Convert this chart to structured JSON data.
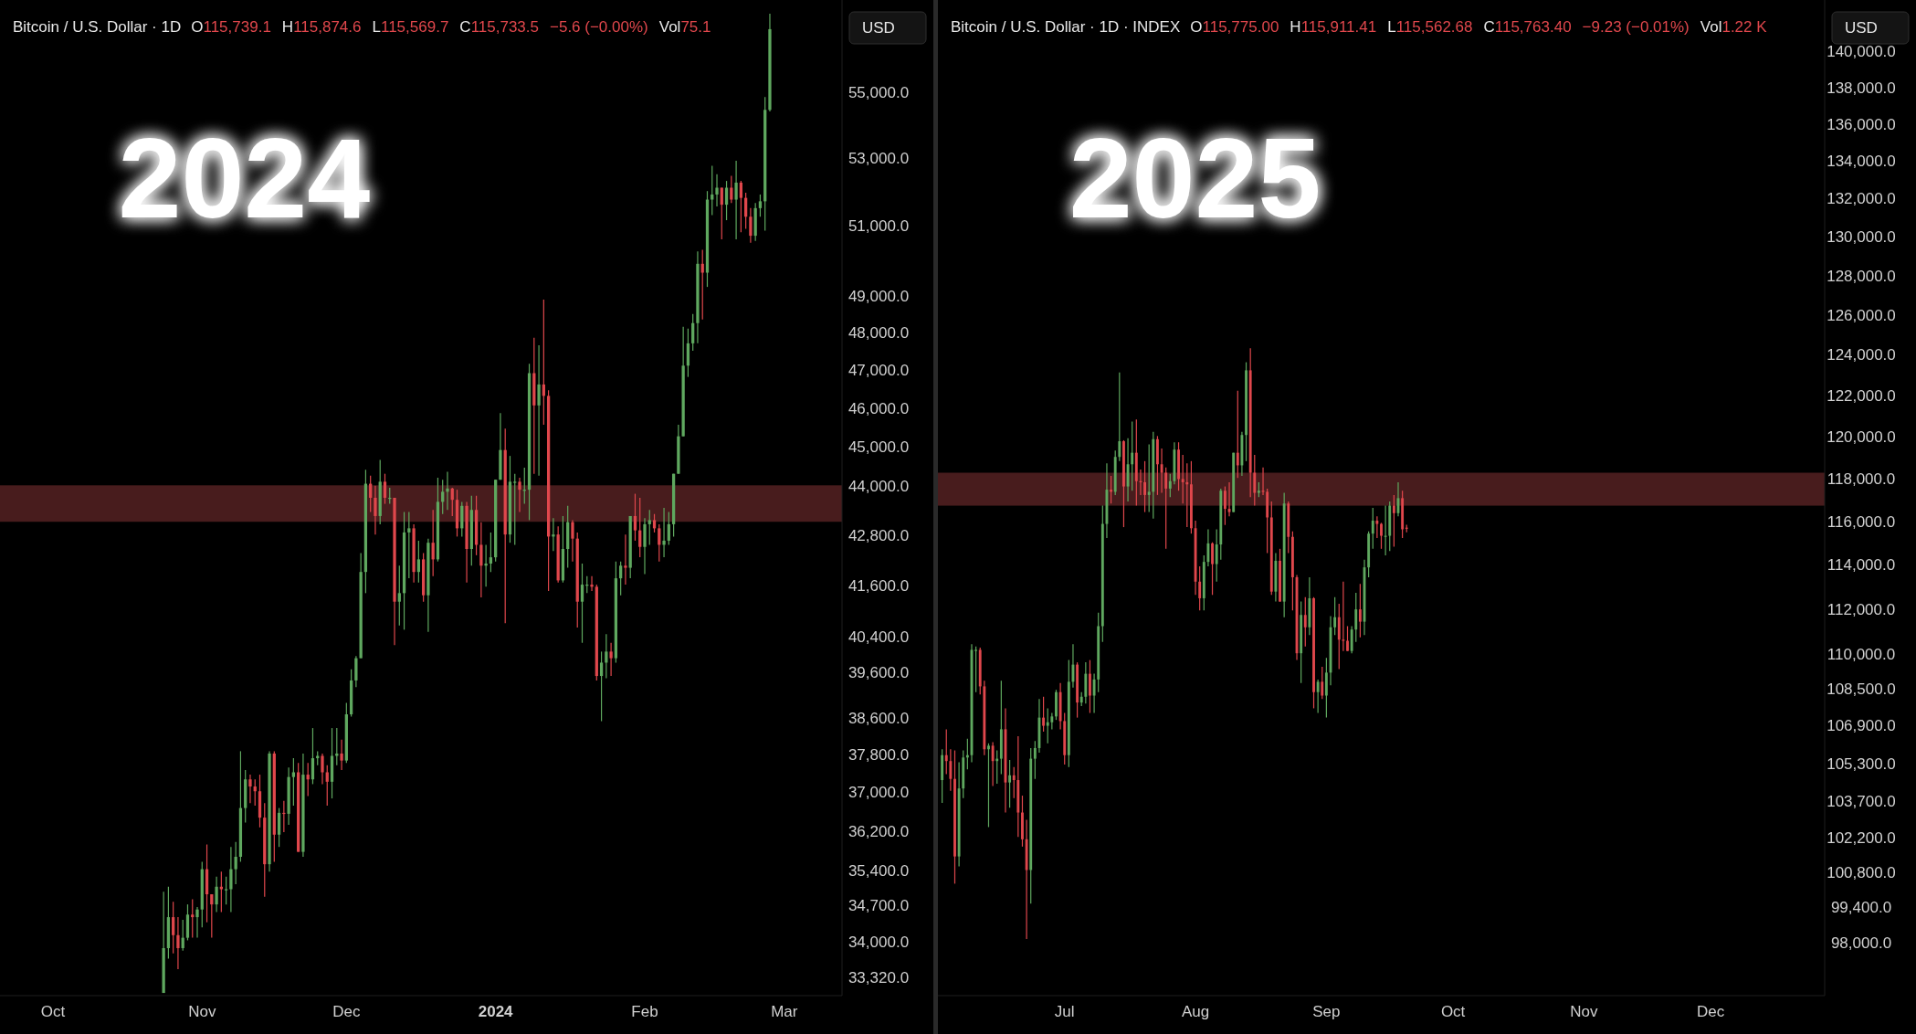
{
  "chart_data": [
    {
      "type": "candlestick",
      "title": "2024",
      "subtitle": "Bitcoin / U.S. Dollar · 1D",
      "ylabel": "USD",
      "log": true,
      "annotations": [
        "O115,739.1",
        "H115,874.6",
        "L115,569.7",
        "C115,733.5",
        "−5.6 (−0.00%)",
        "Vol75.1"
      ],
      "colors": [
        "#5fa85f",
        "#5fa85f",
        "#e0474c",
        "#e0474c",
        "#5fa85f",
        "#5fa85f",
        "#e0474c",
        "#5fa85f",
        "#5fa85f",
        "#e0474c",
        "#e0474c",
        "#5fa85f",
        "#e0474c",
        "#5fa85f",
        "#5fa85f",
        "#5fa85f",
        "#5fa85f",
        "#5fa85f",
        "#e0474c",
        "#e0474c",
        "#e0474c",
        "#e0474c",
        "#5fa85f",
        "#e0474c",
        "#5fa85f",
        "#e0474c",
        "#5fa85f",
        "#5fa85f",
        "#e0474c",
        "#5fa85f",
        "#e0474c",
        "#5fa85f",
        "#5fa85f",
        "#e0474c",
        "#e0474c",
        "#5fa85f",
        "#5fa85f",
        "#e0474c",
        "#5fa85f",
        "#5fa85f",
        "#5fa85f",
        "#5fa85f",
        "#5fa85f",
        "#e0474c",
        "#e0474c",
        "#5fa85f",
        "#e0474c",
        "#5fa85f",
        "#e0474c",
        "#5fa85f",
        "#5fa85f",
        "#5fa85f",
        "#e0474c",
        "#5fa85f",
        "#e0474c",
        "#5fa85f",
        "#e0474c",
        "#5fa85f",
        "#5fa85f",
        "#5fa85f",
        "#e0474c",
        "#e0474c",
        "#5fa85f",
        "#e0474c",
        "#5fa85f",
        "#e0474c",
        "#e0474c",
        "#5fa85f",
        "#5fa85f",
        "#5fa85f",
        "#5fa85f",
        "#e0474c",
        "#5fa85f",
        "#5fa85f",
        "#e0474c",
        "#5fa85f",
        "#5fa85f",
        "#e0474c",
        "#5fa85f",
        "#e0474c",
        "#e0474c",
        "#5fa85f",
        "#e0474c",
        "#5fa85f",
        "#5fa85f",
        "#e0474c",
        "#e0474c",
        "#5fa85f",
        "#5fa85f",
        "#e0474c",
        "#e0474c",
        "#5fa85f",
        "#5fa85f",
        "#e0474c",
        "#5fa85f",
        "#5fa85f",
        "#e0474c",
        "#5fa85f",
        "#e0474c",
        "#e0474c",
        "#5fa85f",
        "#5fa85f",
        "#e0474c",
        "#e0474c",
        "#5fa85f",
        "#5fa85f",
        "#5fa85f",
        "#5fa85f",
        "#5fa85f",
        "#5fa85f",
        "#5fa85f",
        "#5fa85f",
        "#e0474c",
        "#5fa85f",
        "#5fa85f",
        "#5fa85f",
        "#e0474c",
        "#5fa85f",
        "#e0474c",
        "#5fa85f",
        "#e0474c",
        "#e0474c",
        "#e0474c",
        "#5fa85f",
        "#5fa85f",
        "#5fa85f",
        "#5fa85f"
      ],
      "xlim": [
        "2023-09-20",
        "2024-03-13"
      ],
      "xticks": [
        {
          "value": "2023-10-01",
          "label": "Oct"
        },
        {
          "value": "2023-11-01",
          "label": "Nov"
        },
        {
          "value": "2023-12-01",
          "label": "Dec"
        },
        {
          "value": "2024-01-01",
          "label": "2024"
        },
        {
          "value": "2024-02-01",
          "label": "Feb"
        },
        {
          "value": "2024-03-01",
          "label": "Mar"
        }
      ],
      "ylim": [
        33000,
        58000
      ],
      "yticks": [
        {
          "value": 55000,
          "label": "55,000.0"
        },
        {
          "value": 53000,
          "label": "53,000.0"
        },
        {
          "value": 51000,
          "label": "51,000.0"
        },
        {
          "value": 49000,
          "label": "49,000.0"
        },
        {
          "value": 48000,
          "label": "48,000.0"
        },
        {
          "value": 47000,
          "label": "47,000.0"
        },
        {
          "value": 46000,
          "label": "46,000.0"
        },
        {
          "value": 45000,
          "label": "45,000.0"
        },
        {
          "value": 44000,
          "label": "44,000.0"
        },
        {
          "value": 42800,
          "label": "42,800.0"
        },
        {
          "value": 41600,
          "label": "41,600.0"
        },
        {
          "value": 40400,
          "label": "40,400.0"
        },
        {
          "value": 39600,
          "label": "39,600.0"
        },
        {
          "value": 38600,
          "label": "38,600.0"
        },
        {
          "value": 37800,
          "label": "37,800.0"
        },
        {
          "value": 37000,
          "label": "37,000.0"
        },
        {
          "value": 36200,
          "label": "36,200.0"
        },
        {
          "value": 35400,
          "label": "35,400.0"
        },
        {
          "value": 34700,
          "label": "34,700.0"
        },
        {
          "value": 34000,
          "label": "34,000.0"
        },
        {
          "value": 33320,
          "label": "33,320.0"
        }
      ],
      "bands": [
        {
          "axis": "y",
          "from": 43160,
          "to": 44060,
          "color": "#4c1d1f"
        }
      ],
      "x": [
        "2023-10-24",
        "2023-10-25",
        "2023-10-26",
        "2023-10-27",
        "2023-10-28",
        "2023-10-29",
        "2023-10-30",
        "2023-10-31",
        "2023-11-01",
        "2023-11-02",
        "2023-11-03",
        "2023-11-04",
        "2023-11-05",
        "2023-11-06",
        "2023-11-07",
        "2023-11-08",
        "2023-11-09",
        "2023-11-10",
        "2023-11-11",
        "2023-11-12",
        "2023-11-13",
        "2023-11-14",
        "2023-11-15",
        "2023-11-16",
        "2023-11-17",
        "2023-11-18",
        "2023-11-19",
        "2023-11-20",
        "2023-11-21",
        "2023-11-22",
        "2023-11-23",
        "2023-11-24",
        "2023-11-25",
        "2023-11-26",
        "2023-11-27",
        "2023-11-28",
        "2023-11-29",
        "2023-11-30",
        "2023-12-01",
        "2023-12-02",
        "2023-12-03",
        "2023-12-04",
        "2023-12-05",
        "2023-12-06",
        "2023-12-07",
        "2023-12-08",
        "2023-12-09",
        "2023-12-10",
        "2023-12-11",
        "2023-12-12",
        "2023-12-13",
        "2023-12-14",
        "2023-12-15",
        "2023-12-16",
        "2023-12-17",
        "2023-12-18",
        "2023-12-19",
        "2023-12-20",
        "2023-12-21",
        "2023-12-22",
        "2023-12-23",
        "2023-12-24",
        "2023-12-25",
        "2023-12-26",
        "2023-12-27",
        "2023-12-28",
        "2023-12-29",
        "2023-12-30",
        "2023-12-31",
        "2024-01-01",
        "2024-01-02",
        "2024-01-03",
        "2024-01-04",
        "2024-01-05",
        "2024-01-06",
        "2024-01-07",
        "2024-01-08",
        "2024-01-09",
        "2024-01-10",
        "2024-01-11",
        "2024-01-12",
        "2024-01-13",
        "2024-01-14",
        "2024-01-15",
        "2024-01-16",
        "2024-01-17",
        "2024-01-18",
        "2024-01-19",
        "2024-01-20",
        "2024-01-21",
        "2024-01-22",
        "2024-01-23",
        "2024-01-24",
        "2024-01-25",
        "2024-01-26",
        "2024-01-27",
        "2024-01-28",
        "2024-01-29",
        "2024-01-30",
        "2024-01-31",
        "2024-02-01",
        "2024-02-02",
        "2024-02-03",
        "2024-02-04",
        "2024-02-05",
        "2024-02-06",
        "2024-02-07",
        "2024-02-08",
        "2024-02-09",
        "2024-02-10",
        "2024-02-11",
        "2024-02-12",
        "2024-02-13",
        "2024-02-14",
        "2024-02-15",
        "2024-02-16",
        "2024-02-17",
        "2024-02-18",
        "2024-02-19",
        "2024-02-20",
        "2024-02-21",
        "2024-02-22",
        "2024-02-23",
        "2024-02-24",
        "2024-02-25",
        "2024-02-26",
        "2024-02-27"
      ],
      "ohlc": [
        [
          33050,
          35000,
          33050,
          33900
        ],
        [
          33900,
          35100,
          33700,
          34500
        ],
        [
          34500,
          34800,
          33800,
          34150
        ],
        [
          34150,
          34500,
          33500,
          33900
        ],
        [
          33900,
          34450,
          33850,
          34100
        ],
        [
          34100,
          34750,
          34050,
          34550
        ],
        [
          34550,
          34850,
          34100,
          34500
        ],
        [
          34500,
          34700,
          34100,
          34650
        ],
        [
          34650,
          35600,
          34300,
          35450
        ],
        [
          35450,
          35950,
          34400,
          34950
        ],
        [
          34950,
          34950,
          34100,
          34750
        ],
        [
          34750,
          35300,
          34600,
          35100
        ],
        [
          35100,
          35400,
          34600,
          35050
        ],
        [
          35050,
          35300,
          34750,
          35050
        ],
        [
          35050,
          35900,
          34600,
          35450
        ],
        [
          35450,
          36000,
          35150,
          35700
        ],
        [
          35700,
          37900,
          35600,
          36700
        ],
        [
          36700,
          37500,
          36400,
          37300
        ],
        [
          37300,
          37400,
          36800,
          37150
        ],
        [
          37150,
          37300,
          36750,
          37050
        ],
        [
          37050,
          37400,
          36300,
          36500
        ],
        [
          36500,
          36800,
          34900,
          35550
        ],
        [
          35550,
          37900,
          35400,
          37850
        ],
        [
          37850,
          37900,
          35600,
          36150
        ],
        [
          36150,
          36700,
          35900,
          36600
        ],
        [
          36600,
          36850,
          36200,
          36580
        ],
        [
          36580,
          37550,
          36350,
          37350
        ],
        [
          37350,
          37750,
          36750,
          37450
        ],
        [
          37450,
          37650,
          35800,
          35800
        ],
        [
          35800,
          37850,
          35700,
          37400
        ],
        [
          37400,
          37650,
          36950,
          37300
        ],
        [
          37300,
          38400,
          37200,
          37750
        ],
        [
          37750,
          37900,
          37600,
          37800
        ],
        [
          37800,
          37850,
          37200,
          37450
        ],
        [
          37450,
          37600,
          36750,
          37250
        ],
        [
          37250,
          38400,
          36900,
          37800
        ],
        [
          37800,
          38400,
          37600,
          37850
        ],
        [
          37850,
          38150,
          37500,
          37700
        ],
        [
          37700,
          38950,
          37650,
          38700
        ],
        [
          38700,
          39700,
          38650,
          39450
        ],
        [
          39450,
          40000,
          39300,
          39950
        ],
        [
          39950,
          42400,
          39950,
          41950
        ],
        [
          41950,
          44450,
          41450,
          44100
        ],
        [
          44100,
          44300,
          43400,
          43750
        ],
        [
          43750,
          44050,
          42850,
          43300
        ],
        [
          43300,
          44700,
          43100,
          44150
        ],
        [
          44150,
          44350,
          43600,
          43750
        ],
        [
          43750,
          44000,
          43600,
          43750
        ],
        [
          43750,
          43750,
          40250,
          41250
        ],
        [
          41250,
          42100,
          40700,
          41450
        ],
        [
          41450,
          43400,
          40600,
          42900
        ],
        [
          42900,
          43400,
          41800,
          43000
        ],
        [
          43000,
          43100,
          41700,
          41950
        ],
        [
          41950,
          42700,
          41700,
          42250
        ],
        [
          42250,
          42400,
          41250,
          41400
        ],
        [
          41400,
          42750,
          40550,
          42650
        ],
        [
          42650,
          43450,
          41850,
          42250
        ],
        [
          42250,
          44250,
          42200,
          43650
        ],
        [
          43650,
          44200,
          43350,
          43900
        ],
        [
          43900,
          44400,
          43450,
          43980
        ],
        [
          43980,
          44000,
          43300,
          43700
        ],
        [
          43700,
          43950,
          42800,
          43000
        ],
        [
          43000,
          43650,
          42800,
          43550
        ],
        [
          43550,
          43650,
          41700,
          42500
        ],
        [
          42500,
          43800,
          42100,
          43450
        ],
        [
          43450,
          43800,
          42350,
          42600
        ],
        [
          42600,
          43150,
          41350,
          42100
        ],
        [
          42100,
          42600,
          41600,
          42150
        ],
        [
          42150,
          42900,
          41950,
          42300
        ],
        [
          42300,
          44200,
          42200,
          44200
        ],
        [
          44200,
          45900,
          44200,
          44950
        ],
        [
          44950,
          45500,
          40750,
          42850
        ],
        [
          42850,
          44800,
          42650,
          44150
        ],
        [
          44150,
          44350,
          42600,
          44150
        ],
        [
          44150,
          44250,
          43400,
          43950
        ],
        [
          43950,
          44500,
          43600,
          43950
        ],
        [
          43950,
          47200,
          43200,
          46950
        ],
        [
          46950,
          47900,
          44350,
          46100
        ],
        [
          46100,
          47700,
          44300,
          46650
        ],
        [
          46650,
          48950,
          45600,
          46350
        ],
        [
          46350,
          46500,
          41500,
          42800
        ],
        [
          42800,
          43250,
          42450,
          42850
        ],
        [
          42850,
          43050,
          41700,
          41750
        ],
        [
          41750,
          43300,
          41700,
          42500
        ],
        [
          42500,
          43550,
          42050,
          43150
        ],
        [
          43150,
          43200,
          42200,
          42750
        ],
        [
          42750,
          42900,
          40650,
          41250
        ],
        [
          41250,
          42150,
          40300,
          41650
        ],
        [
          41650,
          41850,
          41450,
          41650
        ],
        [
          41650,
          41850,
          41500,
          41600
        ],
        [
          41600,
          41650,
          39450,
          39550
        ],
        [
          39550,
          40100,
          38550,
          39850
        ],
        [
          39850,
          40500,
          39500,
          40100
        ],
        [
          40100,
          40300,
          39550,
          39950
        ],
        [
          39950,
          42200,
          39850,
          41800
        ],
        [
          41800,
          42200,
          41400,
          42100
        ],
        [
          42100,
          42850,
          41650,
          42050
        ],
        [
          42050,
          43300,
          41800,
          43300
        ],
        [
          43300,
          43850,
          42700,
          42950
        ],
        [
          42950,
          43750,
          42300,
          42550
        ],
        [
          42550,
          43250,
          41900,
          43100
        ],
        [
          43100,
          43450,
          42600,
          43200
        ],
        [
          43200,
          43350,
          42900,
          43000
        ],
        [
          43000,
          43100,
          42200,
          42600
        ],
        [
          42600,
          43500,
          42300,
          42700
        ],
        [
          42700,
          43400,
          42600,
          43100
        ],
        [
          43100,
          44350,
          42800,
          44350
        ],
        [
          44350,
          45600,
          44350,
          45300
        ],
        [
          45300,
          48200,
          45300,
          47150
        ],
        [
          47150,
          48150,
          46850,
          47750
        ],
        [
          47750,
          48550,
          47550,
          48300
        ],
        [
          48300,
          50300,
          47750,
          49950
        ],
        [
          49950,
          50350,
          48400,
          49700
        ],
        [
          49700,
          52050,
          49300,
          51800
        ],
        [
          51800,
          52800,
          51350,
          51950
        ],
        [
          51950,
          52550,
          51600,
          52150
        ],
        [
          52150,
          52150,
          50650,
          51650
        ],
        [
          51650,
          52350,
          51200,
          52150
        ],
        [
          52150,
          52500,
          51700,
          51800
        ],
        [
          51800,
          52950,
          50650,
          52300
        ],
        [
          52300,
          52350,
          50850,
          51850
        ],
        [
          51850,
          52000,
          50950,
          51300
        ],
        [
          51300,
          51550,
          50550,
          50750
        ],
        [
          50750,
          51700,
          50600,
          51550
        ],
        [
          51550,
          51950,
          51300,
          51750
        ],
        [
          51750,
          54900,
          50900,
          54500
        ],
        [
          54500,
          57550,
          54450,
          57050
        ]
      ]
    },
    {
      "type": "candlestick",
      "title": "2025",
      "subtitle": "Bitcoin / U.S. Dollar · 1D · INDEX",
      "ylabel": "USD",
      "log": true,
      "annotations": [
        "O115,775.00",
        "H115,911.41",
        "L115,562.68",
        "C115,763.40",
        "−9.23 (−0.01%)",
        "Vol1.22 K"
      ],
      "colors": [
        "#5fa85f",
        "#e0474c",
        "#e0474c",
        "#e0474c",
        "#5fa85f",
        "#5fa85f",
        "#5fa85f",
        "#5fa85f",
        "#5fa85f",
        "#e0474c",
        "#e0474c",
        "#5fa85f",
        "#e0474c",
        "#5fa85f",
        "#5fa85f",
        "#e0474c",
        "#5fa85f",
        "#e0474c",
        "#e0474c",
        "#e0474c",
        "#e0474c",
        "#5fa85f",
        "#5fa85f",
        "#5fa85f",
        "#e0474c",
        "#5fa85f",
        "#5fa85f",
        "#5fa85f",
        "#e0474c",
        "#e0474c",
        "#5fa85f",
        "#5fa85f",
        "#e0474c",
        "#5fa85f",
        "#5fa85f",
        "#e0474c",
        "#5fa85f",
        "#5fa85f",
        "#5fa85f",
        "#5fa85f",
        "#e0474c",
        "#5fa85f",
        "#5fa85f",
        "#e0474c",
        "#5fa85f",
        "#5fa85f",
        "#e0474c",
        "#e0474c",
        "#e0474c",
        "#5fa85f",
        "#5fa85f",
        "#e0474c",
        "#e0474c",
        "#e0474c",
        "#5fa85f",
        "#5fa85f",
        "#e0474c",
        "#e0474c",
        "#e0474c",
        "#e0474c",
        "#e0474c",
        "#e0474c",
        "#5fa85f",
        "#5fa85f",
        "#e0474c",
        "#5fa85f",
        "#5fa85f",
        "#e0474c",
        "#e0474c",
        "#5fa85f",
        "#e0474c",
        "#5fa85f",
        "#5fa85f",
        "#e0474c",
        "#e0474c",
        "#5fa85f",
        "#e0474c",
        "#e0474c",
        "#e0474c",
        "#5fa85f",
        "#e0474c",
        "#5fa85f",
        "#e0474c",
        "#e0474c",
        "#e0474c",
        "#5fa85f",
        "#e0474c",
        "#5fa85f",
        "#e0474c",
        "#5fa85f",
        "#e0474c",
        "#5fa85f",
        "#5fa85f",
        "#5fa85f",
        "#e0474c",
        "#e0474c",
        "#e0474c",
        "#5fa85f",
        "#5fa85f",
        "#e0474c",
        "#5fa85f",
        "#5fa85f",
        "#5fa85f",
        "#e0474c",
        "#e0474c",
        "#5fa85f",
        "#5fa85f",
        "#e0474c",
        "#5fa85f",
        "#e0474c",
        "#e0474c"
      ],
      "xlim": [
        "2025-06-01",
        "2025-12-28"
      ],
      "xticks": [
        {
          "value": "2025-07-01",
          "label": "Jul"
        },
        {
          "value": "2025-08-01",
          "label": "Aug"
        },
        {
          "value": "2025-09-01",
          "label": "Sep"
        },
        {
          "value": "2025-10-01",
          "label": "Oct"
        },
        {
          "value": "2025-11-01",
          "label": "Nov"
        },
        {
          "value": "2025-12-01",
          "label": "Dec"
        }
      ],
      "ylim": [
        96000,
        143000
      ],
      "yticks": [
        {
          "value": 140000,
          "label": "140,000.0"
        },
        {
          "value": 138000,
          "label": "138,000.0"
        },
        {
          "value": 136000,
          "label": "136,000.0"
        },
        {
          "value": 134000,
          "label": "134,000.0"
        },
        {
          "value": 132000,
          "label": "132,000.0"
        },
        {
          "value": 130000,
          "label": "130,000.0"
        },
        {
          "value": 128000,
          "label": "128,000.0"
        },
        {
          "value": 126000,
          "label": "126,000.0"
        },
        {
          "value": 124000,
          "label": "124,000.0"
        },
        {
          "value": 122000,
          "label": "122,000.0"
        },
        {
          "value": 120000,
          "label": "120,000.0"
        },
        {
          "value": 118000,
          "label": "118,000.0"
        },
        {
          "value": 116000,
          "label": "116,000.0"
        },
        {
          "value": 114000,
          "label": "114,000.0"
        },
        {
          "value": 112000,
          "label": "112,000.0"
        },
        {
          "value": 110000,
          "label": "110,000.0"
        },
        {
          "value": 108500,
          "label": "108,500.0"
        },
        {
          "value": 106900,
          "label": "106,900.0"
        },
        {
          "value": 105300,
          "label": "105,300.0"
        },
        {
          "value": 103700,
          "label": "103,700.0"
        },
        {
          "value": 102200,
          "label": "102,200.0"
        },
        {
          "value": 100800,
          "label": "100,800.0"
        },
        {
          "value": 99400,
          "label": "99,400.0"
        },
        {
          "value": 98000,
          "label": "98,000.0"
        }
      ],
      "bands": [
        {
          "axis": "y",
          "from": 116800,
          "to": 118350,
          "color": "#4c1d1f"
        }
      ],
      "x": [
        "2025-06-02",
        "2025-06-03",
        "2025-06-04",
        "2025-06-05",
        "2025-06-06",
        "2025-06-07",
        "2025-06-08",
        "2025-06-09",
        "2025-06-10",
        "2025-06-11",
        "2025-06-12",
        "2025-06-13",
        "2025-06-14",
        "2025-06-15",
        "2025-06-16",
        "2025-06-17",
        "2025-06-18",
        "2025-06-19",
        "2025-06-20",
        "2025-06-21",
        "2025-06-22",
        "2025-06-23",
        "2025-06-24",
        "2025-06-25",
        "2025-06-26",
        "2025-06-27",
        "2025-06-28",
        "2025-06-29",
        "2025-06-30",
        "2025-07-01",
        "2025-07-02",
        "2025-07-03",
        "2025-07-04",
        "2025-07-05",
        "2025-07-06",
        "2025-07-07",
        "2025-07-08",
        "2025-07-09",
        "2025-07-10",
        "2025-07-11",
        "2025-07-12",
        "2025-07-13",
        "2025-07-14",
        "2025-07-15",
        "2025-07-16",
        "2025-07-17",
        "2025-07-18",
        "2025-07-19",
        "2025-07-20",
        "2025-07-21",
        "2025-07-22",
        "2025-07-23",
        "2025-07-24",
        "2025-07-25",
        "2025-07-26",
        "2025-07-27",
        "2025-07-28",
        "2025-07-29",
        "2025-07-30",
        "2025-07-31",
        "2025-08-01",
        "2025-08-02",
        "2025-08-03",
        "2025-08-04",
        "2025-08-05",
        "2025-08-06",
        "2025-08-07",
        "2025-08-08",
        "2025-08-09",
        "2025-08-10",
        "2025-08-11",
        "2025-08-12",
        "2025-08-13",
        "2025-08-14",
        "2025-08-15",
        "2025-08-16",
        "2025-08-17",
        "2025-08-18",
        "2025-08-19",
        "2025-08-20",
        "2025-08-21",
        "2025-08-22",
        "2025-08-23",
        "2025-08-24",
        "2025-08-25",
        "2025-08-26",
        "2025-08-27",
        "2025-08-28",
        "2025-08-29",
        "2025-08-30",
        "2025-08-31",
        "2025-09-01",
        "2025-09-02",
        "2025-09-03",
        "2025-09-04",
        "2025-09-05",
        "2025-09-06",
        "2025-09-07",
        "2025-09-08",
        "2025-09-09",
        "2025-09-10",
        "2025-09-11",
        "2025-09-12",
        "2025-09-13",
        "2025-09-14",
        "2025-09-15",
        "2025-09-16",
        "2025-09-17",
        "2025-09-18",
        "2025-09-19",
        "2025-09-20"
      ],
      "ohlc": [
        [
          104650,
          105950,
          103700,
          105700
        ],
        [
          105700,
          106800,
          104900,
          105450
        ],
        [
          105450,
          105950,
          104200,
          104700
        ],
        [
          104700,
          105900,
          100400,
          101500
        ],
        [
          101500,
          105400,
          101100,
          104300
        ],
        [
          104300,
          105900,
          103900,
          105600
        ],
        [
          105600,
          106400,
          105100,
          105700
        ],
        [
          105700,
          110500,
          105400,
          110250
        ],
        [
          110250,
          110400,
          108400,
          110250
        ],
        [
          110250,
          110350,
          108300,
          108650
        ],
        [
          108650,
          108900,
          105700,
          105950
        ],
        [
          105950,
          106200,
          102700,
          106100
        ],
        [
          106100,
          106250,
          104400,
          105450
        ],
        [
          105450,
          105900,
          104500,
          105550
        ],
        [
          105550,
          108900,
          104900,
          106800
        ],
        [
          106800,
          107700,
          103300,
          104550
        ],
        [
          104550,
          105500,
          103500,
          104850
        ],
        [
          104850,
          105200,
          103900,
          104650
        ],
        [
          104650,
          106500,
          102300,
          103300
        ],
        [
          103300,
          104000,
          101900,
          102200
        ],
        [
          102200,
          103000,
          98200,
          100950
        ],
        [
          100950,
          106000,
          99600,
          105550
        ],
        [
          105550,
          106300,
          104700,
          106000
        ],
        [
          106000,
          108100,
          105800,
          107300
        ],
        [
          107300,
          108200,
          106700,
          106950
        ],
        [
          106950,
          107700,
          106200,
          107100
        ],
        [
          107100,
          107500,
          106800,
          107350
        ],
        [
          107350,
          108500,
          107200,
          108400
        ],
        [
          108400,
          108800,
          106800,
          107150
        ],
        [
          107150,
          107500,
          105300,
          105700
        ],
        [
          105700,
          109800,
          105200,
          108850
        ],
        [
          108850,
          110500,
          108600,
          109600
        ],
        [
          109600,
          109700,
          107300,
          107950
        ],
        [
          107950,
          108400,
          107800,
          108200
        ],
        [
          108200,
          109700,
          107900,
          109200
        ],
        [
          109200,
          109800,
          107500,
          108250
        ],
        [
          108250,
          109200,
          107500,
          108950
        ],
        [
          108950,
          111900,
          108400,
          111300
        ],
        [
          111300,
          116800,
          110600,
          115950
        ],
        [
          115950,
          118800,
          115300,
          117550
        ],
        [
          117550,
          118200,
          116900,
          117450
        ],
        [
          117450,
          119400,
          117300,
          119100
        ],
        [
          119100,
          123200,
          118900,
          119850
        ],
        [
          119850,
          119900,
          115800,
          117700
        ],
        [
          117700,
          120000,
          117000,
          118750
        ],
        [
          118750,
          120800,
          117500,
          119300
        ],
        [
          119300,
          120900,
          116800,
          117950
        ],
        [
          117950,
          118500,
          117300,
          117900
        ],
        [
          117900,
          118900,
          116500,
          117300
        ],
        [
          117300,
          119700,
          116500,
          117450
        ],
        [
          117450,
          120300,
          116200,
          119950
        ],
        [
          119950,
          120100,
          117300,
          118750
        ],
        [
          118750,
          119500,
          117400,
          118350
        ],
        [
          118350,
          118600,
          114800,
          117600
        ],
        [
          117600,
          118300,
          117200,
          117950
        ],
        [
          117950,
          119800,
          117800,
          119450
        ],
        [
          119450,
          119800,
          117500,
          118050
        ],
        [
          118050,
          119200,
          116900,
          117900
        ],
        [
          117900,
          118800,
          115800,
          117800
        ],
        [
          117800,
          118900,
          115500,
          115750
        ],
        [
          115750,
          116100,
          112700,
          113300
        ],
        [
          113300,
          114000,
          112000,
          112550
        ],
        [
          112550,
          114500,
          112000,
          114200
        ],
        [
          114200,
          115700,
          114000,
          115050
        ],
        [
          115050,
          115100,
          112700,
          114100
        ],
        [
          114100,
          115700,
          113300,
          115000
        ],
        [
          115000,
          117600,
          114300,
          117500
        ],
        [
          117500,
          117700,
          115900,
          116650
        ],
        [
          116650,
          117900,
          116300,
          116500
        ],
        [
          116500,
          119300,
          116500,
          119300
        ],
        [
          119300,
          122300,
          118100,
          118700
        ],
        [
          118700,
          120300,
          118200,
          120150
        ],
        [
          120150,
          123700,
          118900,
          123300
        ],
        [
          123300,
          124400,
          117200,
          118350
        ],
        [
          118350,
          119200,
          116800,
          117400
        ],
        [
          117400,
          117900,
          117200,
          117500
        ],
        [
          117500,
          118600,
          117300,
          117450
        ],
        [
          117450,
          117600,
          114600,
          116250
        ],
        [
          116250,
          117000,
          112700,
          112850
        ],
        [
          112850,
          114600,
          112400,
          114250
        ],
        [
          114250,
          114800,
          112400,
          112400
        ],
        [
          112400,
          117400,
          111700,
          116900
        ],
        [
          116900,
          117000,
          114600,
          115350
        ],
        [
          115350,
          115600,
          112000,
          113500
        ],
        [
          113500,
          113600,
          109800,
          110100
        ],
        [
          110100,
          112400,
          108800,
          111800
        ],
        [
          111800,
          112600,
          110400,
          111250
        ],
        [
          111250,
          113500,
          110900,
          112550
        ],
        [
          112550,
          112600,
          107700,
          108400
        ],
        [
          108400,
          108950,
          107500,
          108850
        ],
        [
          108850,
          109500,
          108100,
          108250
        ],
        [
          108250,
          109900,
          107300,
          109250
        ],
        [
          109250,
          111750,
          108700,
          111250
        ],
        [
          111250,
          112600,
          110900,
          111700
        ],
        [
          111700,
          112300,
          109400,
          110700
        ],
        [
          110700,
          113300,
          110200,
          110650
        ],
        [
          110650,
          111300,
          110200,
          110200
        ],
        [
          110200,
          111300,
          110100,
          111150
        ],
        [
          111150,
          112800,
          110600,
          112050
        ],
        [
          112050,
          113200,
          110800,
          111500
        ],
        [
          111500,
          114300,
          110900,
          113950
        ],
        [
          113950,
          115600,
          113500,
          115500
        ],
        [
          115500,
          116700,
          114800,
          116100
        ],
        [
          116100,
          116300,
          115300,
          115950
        ],
        [
          115950,
          116000,
          114800,
          115400
        ],
        [
          115400,
          116800,
          114500,
          115400
        ],
        [
          115400,
          117000,
          114700,
          116800
        ],
        [
          116800,
          117300,
          114900,
          116450
        ],
        [
          116450,
          117900,
          116300,
          117150
        ],
        [
          117150,
          117500,
          115300,
          115700
        ],
        [
          115775,
          115911.41,
          115562.68,
          115763.4
        ]
      ]
    }
  ]
}
